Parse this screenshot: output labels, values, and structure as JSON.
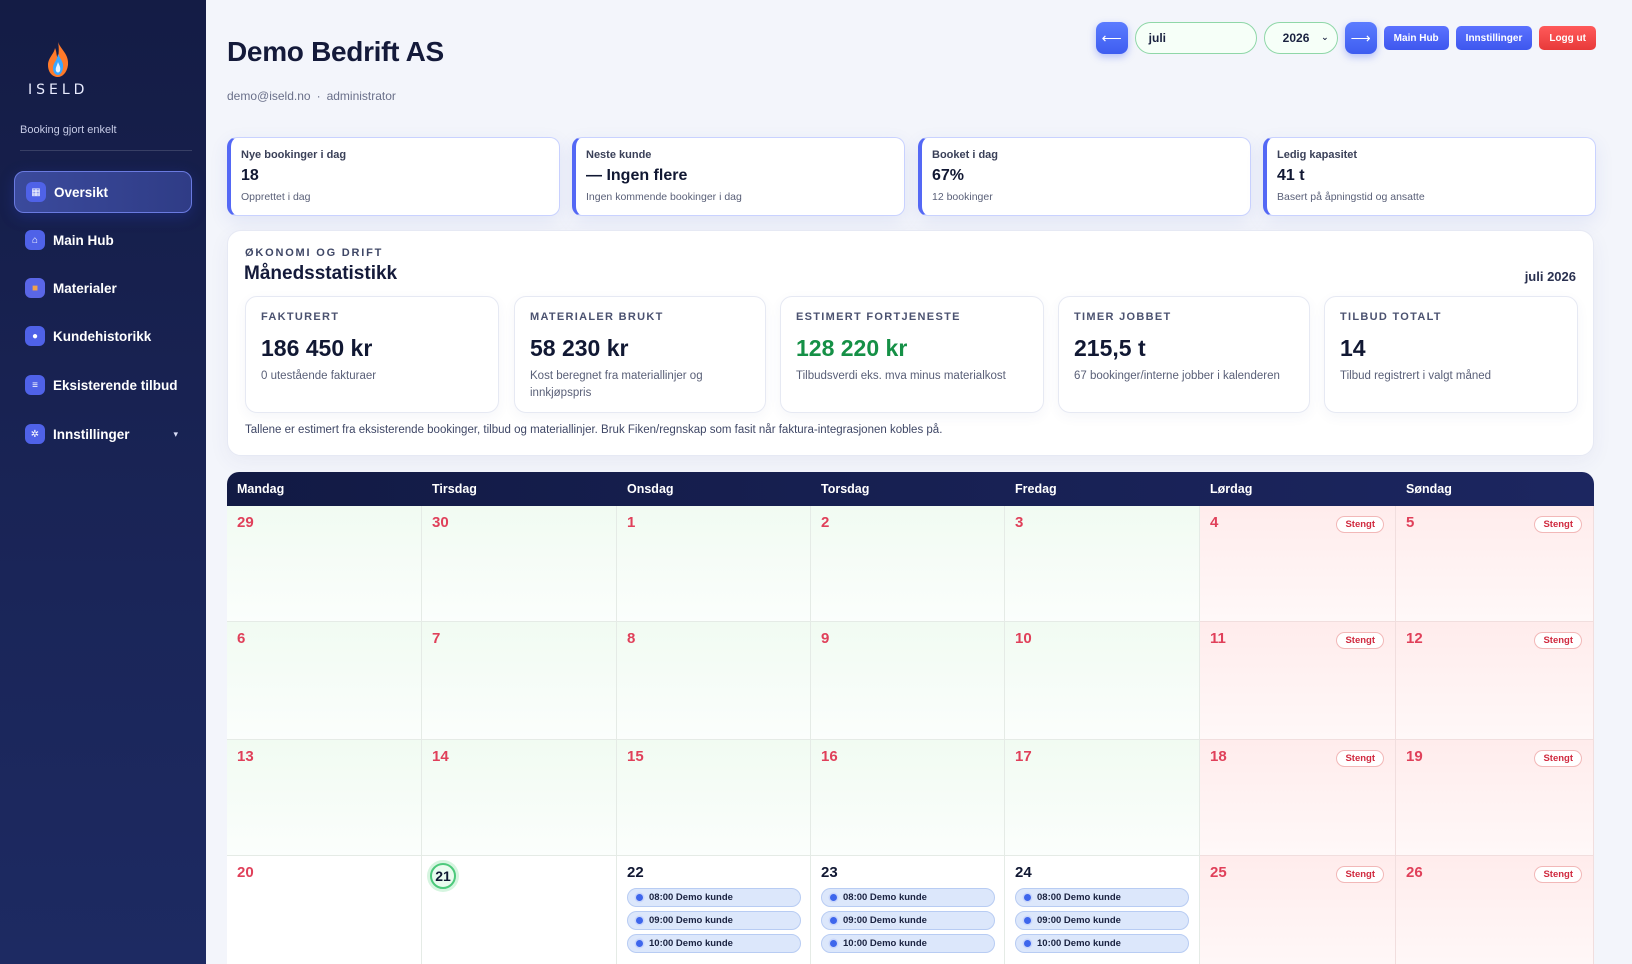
{
  "sidebar": {
    "logo_text": "ISELD",
    "tagline": "Booking gjort enkelt",
    "items": [
      {
        "label": "Oversikt",
        "icon": "dashboard-icon"
      },
      {
        "label": "Main Hub",
        "icon": "home-icon"
      },
      {
        "label": "Materialer",
        "icon": "box-icon"
      },
      {
        "label": "Kundehistorikk",
        "icon": "user-icon"
      },
      {
        "label": "Eksisterende tilbud",
        "icon": "document-icon"
      },
      {
        "label": "Innstillinger",
        "icon": "gear-icon"
      }
    ]
  },
  "header": {
    "title": "Demo Bedrift AS",
    "email": "demo@iseld.no",
    "role": "administrator"
  },
  "controls": {
    "prev_label": "⟵",
    "next_label": "⟶",
    "month": "juli",
    "year": "2026",
    "main_hub": "Main Hub",
    "settings": "Innstillinger",
    "logout": "Logg ut"
  },
  "kpis": [
    {
      "label": "Nye bookinger i dag",
      "value": "18",
      "sub": "Opprettet i dag"
    },
    {
      "label": "Neste kunde",
      "value": "— Ingen flere",
      "sub": "Ingen kommende bookinger i dag"
    },
    {
      "label": "Booket i dag",
      "value": "67%",
      "sub": "12 bookinger"
    },
    {
      "label": "Ledig kapasitet",
      "value": "41 t",
      "sub": "Basert på åpningstid og ansatte"
    }
  ],
  "stats": {
    "overline": "ØKONOMI OG DRIFT",
    "title": "Månedsstatistikk",
    "month": "juli 2026",
    "cards": [
      {
        "label": "FAKTURERT",
        "value": "186 450 kr",
        "sub": "0 utestående fakturaer"
      },
      {
        "label": "MATERIALER BRUKT",
        "value": "58 230 kr",
        "sub": "Kost beregnet fra materiallinjer og innkjøpspris"
      },
      {
        "label": "ESTIMERT FORTJENESTE",
        "value": "128 220 kr",
        "sub": "Tilbudsverdi eks. mva minus materialkost"
      },
      {
        "label": "TIMER JOBBET",
        "value": "215,5 t",
        "sub": "67 bookinger/interne jobber i kalenderen"
      },
      {
        "label": "TILBUD TOTALT",
        "value": "14",
        "sub": "Tilbud registrert i valgt måned"
      }
    ],
    "note": "Tallene er estimert fra eksisterende bookinger, tilbud og materiallinjer. Bruk Fiken/regnskap som fasit når faktura-integrasjonen kobles på."
  },
  "calendar": {
    "weekdays": [
      "Mandag",
      "Tirsdag",
      "Onsdag",
      "Torsdag",
      "Fredag",
      "Lørdag",
      "Søndag"
    ],
    "closed_label": "Stengt",
    "weeks": [
      [
        "29",
        "30",
        "1",
        "2",
        "3",
        "4",
        "5"
      ],
      [
        "6",
        "7",
        "8",
        "9",
        "10",
        "11",
        "12"
      ],
      [
        "13",
        "14",
        "15",
        "16",
        "17",
        "18",
        "19"
      ],
      [
        "20",
        "21",
        "22",
        "23",
        "24",
        "25",
        "26"
      ]
    ],
    "today": "21",
    "events": [
      "08:00 Demo kunde",
      "09:00 Demo kunde",
      "10:00 Demo kunde"
    ]
  }
}
